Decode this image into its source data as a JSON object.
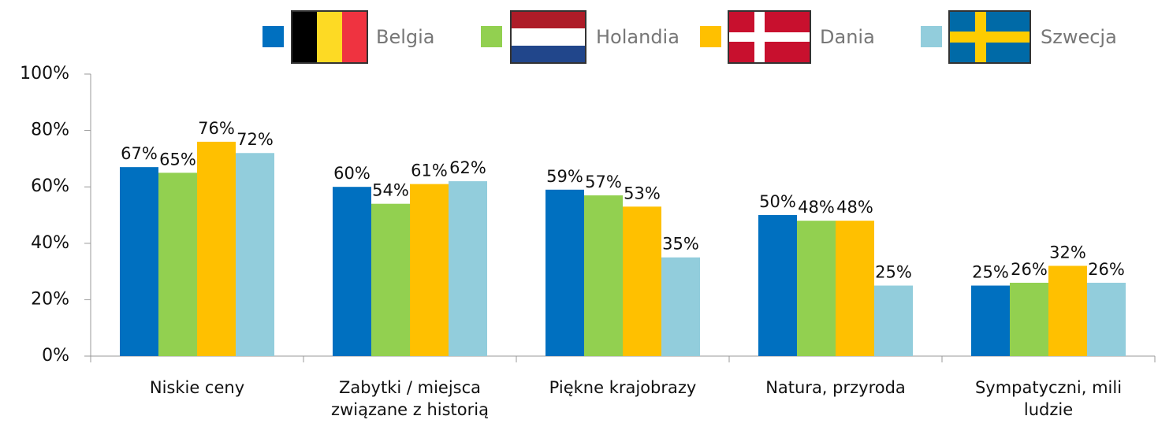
{
  "chart_data": {
    "type": "bar",
    "categories": [
      "Niskie ceny",
      "Zabytki / miejsca związane z historią",
      "Piękne krajobrazy",
      "Natura, przyroda",
      "Sympatyczni, mili ludzie"
    ],
    "series": [
      {
        "name": "Belgia",
        "color": "#0070c0",
        "values": [
          67,
          60,
          59,
          50,
          25
        ],
        "value_labels": [
          "67%",
          "60%",
          "59%",
          "50%",
          "25%"
        ]
      },
      {
        "name": "Holandia",
        "color": "#92d050",
        "values": [
          65,
          54,
          57,
          48,
          26
        ],
        "value_labels": [
          "65%",
          "54%",
          "57%",
          "48%",
          "26%"
        ]
      },
      {
        "name": "Dania",
        "color": "#ffc000",
        "values": [
          76,
          61,
          53,
          48,
          32
        ],
        "value_labels": [
          "76%",
          "61%",
          "53%",
          "48%",
          "32%"
        ]
      },
      {
        "name": "Szwecja",
        "color": "#92cddc",
        "values": [
          72,
          62,
          35,
          25,
          26
        ],
        "value_labels": [
          "72%",
          "62%",
          "35%",
          "25%",
          "26%"
        ]
      }
    ],
    "ylim": [
      0,
      100
    ],
    "yticks": [
      {
        "value": 0,
        "label": "0%"
      },
      {
        "value": 20,
        "label": "20%"
      },
      {
        "value": 40,
        "label": "40%"
      },
      {
        "value": 60,
        "label": "60%"
      },
      {
        "value": 80,
        "label": "80%"
      },
      {
        "value": 100,
        "label": "100%"
      }
    ],
    "grid": false,
    "legend": "top"
  }
}
